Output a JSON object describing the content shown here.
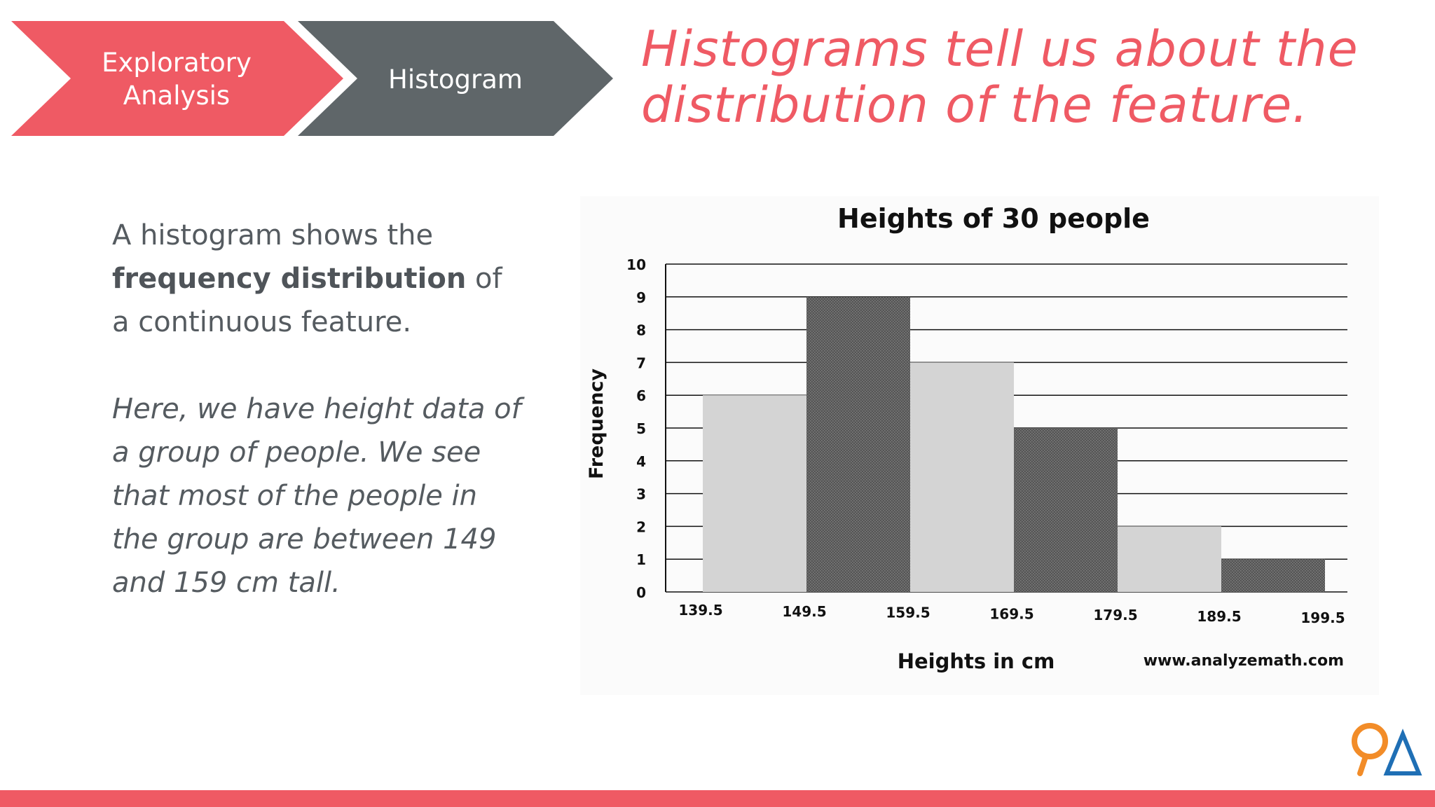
{
  "breadcrumb": {
    "step1": "Exploratory Analysis",
    "step1_line1": "Exploratory",
    "step1_line2": "Analysis",
    "step2": "Histogram"
  },
  "headline": "Histograms tell us about the distribution of the feature.",
  "body": {
    "para1_prefix": "A histogram shows the",
    "para1_bold": "frequency distribution",
    "para1_suffix": "of a continuous feature.",
    "para2": "Here, we have height data of a group of people. We see that most of the people in the group are between 149 and 159 cm tall."
  },
  "colors": {
    "accent": "#ef5a64",
    "dark_gray": "#5f6669",
    "light_bar": "#d4d4d4",
    "dark_bar": "#555555",
    "logo_orange": "#f28c28",
    "logo_blue": "#1f6fb5"
  },
  "chart_data": {
    "type": "bar",
    "title": "Heights of 30 people",
    "xlabel": "Heights in cm",
    "ylabel": "Frequency",
    "bin_edges": [
      139.5,
      149.5,
      159.5,
      169.5,
      179.5,
      189.5,
      199.5
    ],
    "x_tick_labels": [
      "139.5",
      "149.5",
      "159.5",
      "169.5",
      "179.5",
      "189.5",
      "199.5"
    ],
    "values": [
      6,
      9,
      7,
      5,
      2,
      1
    ],
    "ylim": [
      0,
      10
    ],
    "y_ticks": [
      0,
      1,
      2,
      3,
      4,
      5,
      6,
      7,
      8,
      9,
      10
    ],
    "grid": "horizontal",
    "source": "www.analyzemath.com"
  }
}
